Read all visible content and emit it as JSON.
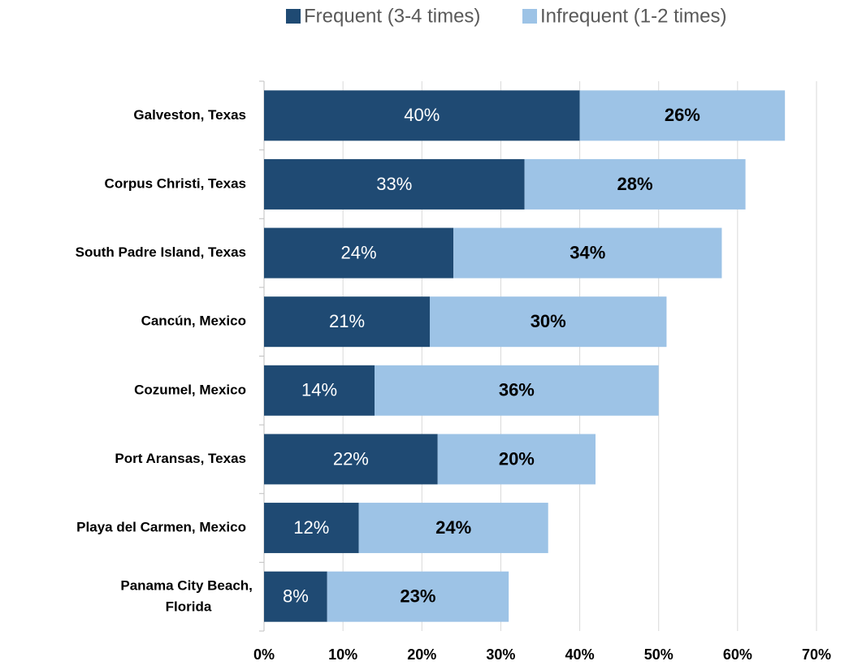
{
  "chart_data": {
    "type": "stacked-bar",
    "orientation": "horizontal",
    "legend": "top",
    "grid": true,
    "categories": [
      "Galveston, Texas",
      "Corpus Christi, Texas",
      "South Padre Island, Texas",
      "Cancún, Mexico",
      "Cozumel, Mexico",
      "Port Aransas, Texas",
      "Playa del Carmen, Mexico",
      "Panama City Beach, Florida"
    ],
    "series": [
      {
        "name": "Frequent (3-4 times)",
        "color": "#1f4a73",
        "values": [
          40,
          33,
          24,
          21,
          14,
          22,
          12,
          8
        ],
        "value_labels": [
          "40%",
          "33%",
          "24%",
          "21%",
          "14%",
          "22%",
          "12%",
          "8%"
        ]
      },
      {
        "name": "Infrequent (1-2 times)",
        "color": "#9dc3e6",
        "values": [
          26,
          28,
          34,
          30,
          36,
          20,
          24,
          23
        ],
        "value_labels": [
          "26%",
          "28%",
          "34%",
          "30%",
          "36%",
          "20%",
          "24%",
          "23%"
        ]
      }
    ],
    "xlim": [
      0,
      70
    ],
    "xticks": [
      {
        "value": 0,
        "label": "0%"
      },
      {
        "value": 10,
        "label": "10%"
      },
      {
        "value": 20,
        "label": "20%"
      },
      {
        "value": 30,
        "label": "30%"
      },
      {
        "value": 40,
        "label": "40%"
      },
      {
        "value": 50,
        "label": "50%"
      },
      {
        "value": 60,
        "label": "60%"
      },
      {
        "value": 70,
        "label": "70%"
      }
    ]
  }
}
